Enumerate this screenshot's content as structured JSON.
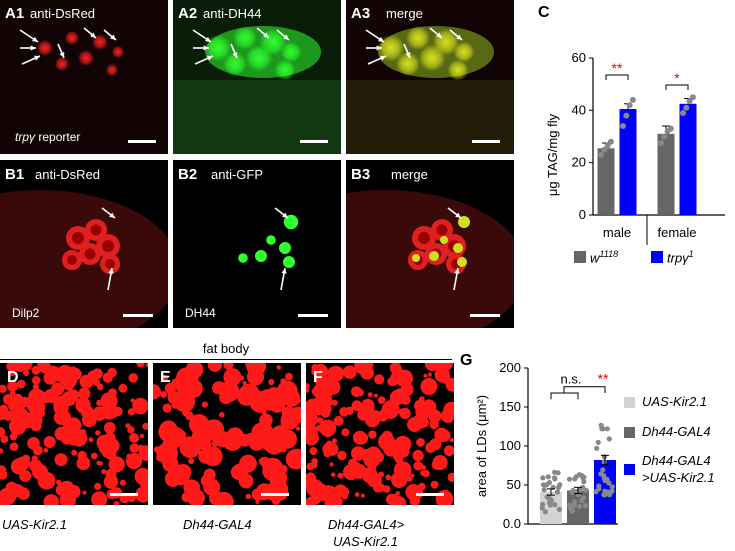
{
  "figure": {
    "panels": {
      "A1": {
        "label": "A1",
        "title": "anti-DsRed",
        "bottom_prefix": "trp",
        "bottom_greek": "γ",
        "bottom_suffix": " reporter"
      },
      "A2": {
        "label": "A2",
        "title": "anti-DH44"
      },
      "A3": {
        "label": "A3",
        "title": "merge"
      },
      "B1": {
        "label": "B1",
        "title": "anti-DsRed",
        "bottom": "Dilp2"
      },
      "B2": {
        "label": "B2",
        "title": "anti-GFP",
        "bottom": "DH44"
      },
      "B3": {
        "label": "B3",
        "title": "merge"
      },
      "C": {
        "label": "C"
      },
      "D": {
        "label": "D",
        "caption": "UAS-Kir2.1"
      },
      "E": {
        "label": "E",
        "caption": "Dh44-GAL4"
      },
      "F": {
        "label": "F",
        "caption_line1": "Dh44-GAL4>",
        "caption_line2": "UAS-Kir2.1"
      },
      "G": {
        "label": "G"
      }
    },
    "fat_body_header": "fat body"
  },
  "chart_data": [
    {
      "type": "bar",
      "panel": "C",
      "ylabel": "μg TAG/mg fly",
      "ylim": [
        0,
        60
      ],
      "yticks": [
        "0",
        "20",
        "40",
        "60"
      ],
      "categories": [
        "male",
        "female"
      ],
      "series": [
        {
          "name": "w1118",
          "name_base": "w",
          "name_sup": "1118",
          "color": "#666666",
          "values": [
            25.5,
            31
          ]
        },
        {
          "name": "trpγ1",
          "name_base": "trpγ",
          "name_sup": "1",
          "color": "#0000ff",
          "values": [
            40.5,
            42.5
          ]
        }
      ],
      "errors": [
        [
          2,
          2
        ],
        [
          3,
          2
        ]
      ],
      "points": {
        "w1118": [
          [
            23,
            25,
            26.5,
            28
          ],
          [
            27.5,
            30,
            32,
            33
          ]
        ],
        "trpγ1": [
          [
            34,
            38,
            42,
            44
          ],
          [
            39,
            41,
            43.5,
            45
          ]
        ]
      },
      "significance": [
        "**",
        "*"
      ],
      "significance_color": "#e00000"
    },
    {
      "type": "bar",
      "panel": "G",
      "ylabel": "area of LDs (μm²)",
      "ylim": [
        0,
        200
      ],
      "yticks": [
        "0.0",
        "50",
        "100",
        "150",
        "200"
      ],
      "categories": [
        "UAS-Kir2.1",
        "Dh44-GAL4",
        "Dh44-GAL4 >UAS-Kir2.1"
      ],
      "legend": [
        {
          "line1": "UAS-Kir2.1",
          "line2": "",
          "color": "#d3d3d3"
        },
        {
          "line1": "Dh44-GAL4",
          "line2": "",
          "color": "#666666"
        },
        {
          "line1": "Dh44-GAL4",
          "line2": ">UAS-Kir2.1",
          "color": "#0000ff"
        }
      ],
      "values": [
        41,
        43,
        82
      ],
      "errors": [
        4,
        4,
        6
      ],
      "annotations": {
        "ns": "n.s.",
        "sig": "**"
      }
    }
  ]
}
